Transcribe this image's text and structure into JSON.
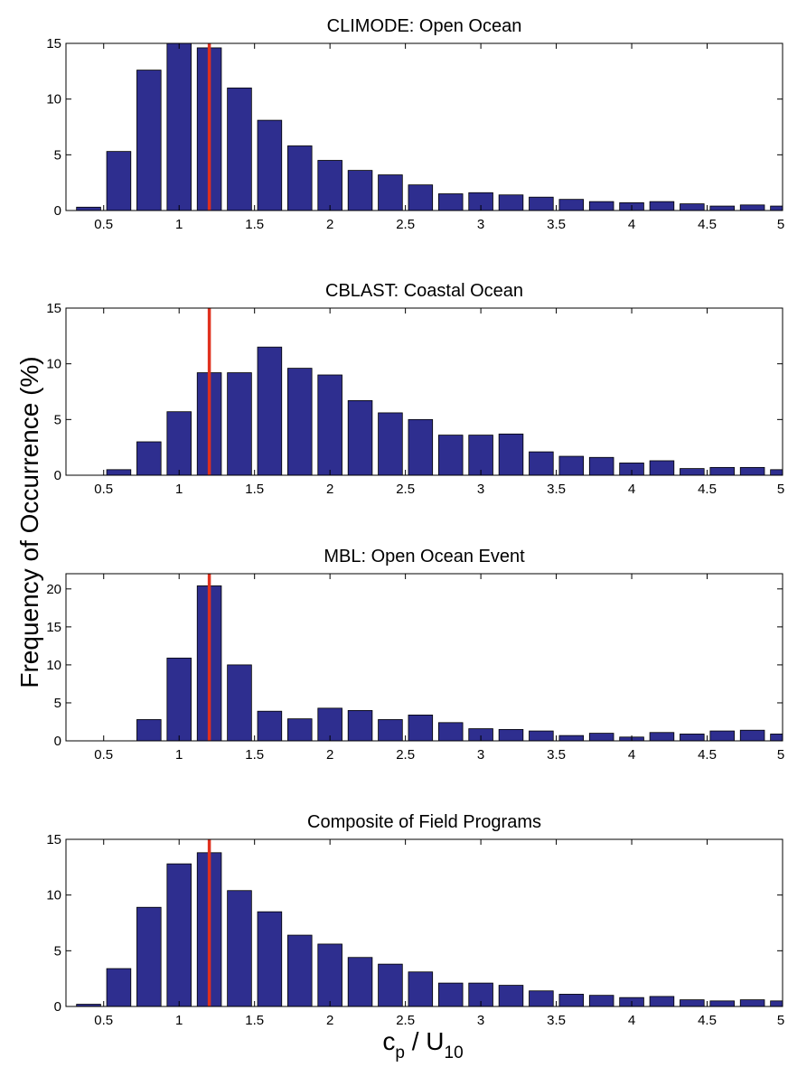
{
  "figure": {
    "ylabel": "Frequency of Occurrence (%)",
    "xlabel_main": "c",
    "xlabel_sub1": "p",
    "xlabel_mid": " / U",
    "xlabel_sub2": "10",
    "bar_color": "#2e2e8f",
    "bar_edge_color": "#000000",
    "ref_line_color": "#e0301e"
  },
  "chart_data": [
    {
      "type": "bar",
      "title": "CLIMODE: Open Ocean",
      "xlim": [
        0.25,
        5.0
      ],
      "ylim": [
        0,
        15
      ],
      "yticks": [
        0,
        5,
        10,
        15
      ],
      "xticks": [
        "0.5",
        "1",
        "1.5",
        "2",
        "2.5",
        "3",
        "3.5",
        "4",
        "4.5",
        "5"
      ],
      "bin_width": 0.2,
      "reference_line_x": 1.2,
      "x": [
        0.4,
        0.6,
        0.8,
        1.0,
        1.2,
        1.4,
        1.6,
        1.8,
        2.0,
        2.2,
        2.4,
        2.6,
        2.8,
        3.0,
        3.2,
        3.4,
        3.6,
        3.8,
        4.0,
        4.2,
        4.4,
        4.6,
        4.8,
        5.0
      ],
      "values": [
        0.3,
        5.3,
        12.6,
        15.0,
        14.6,
        11.0,
        8.1,
        5.8,
        4.5,
        3.6,
        3.2,
        2.3,
        1.5,
        1.6,
        1.4,
        1.2,
        1.0,
        0.8,
        0.7,
        0.8,
        0.6,
        0.4,
        0.5,
        0.4
      ]
    },
    {
      "type": "bar",
      "title": "CBLAST: Coastal Ocean",
      "xlim": [
        0.25,
        5.0
      ],
      "ylim": [
        0,
        15
      ],
      "yticks": [
        0,
        5,
        10,
        15
      ],
      "xticks": [
        "0.5",
        "1",
        "1.5",
        "2",
        "2.5",
        "3",
        "3.5",
        "4",
        "4.5",
        "5"
      ],
      "bin_width": 0.2,
      "reference_line_x": 1.2,
      "x": [
        0.4,
        0.6,
        0.8,
        1.0,
        1.2,
        1.4,
        1.6,
        1.8,
        2.0,
        2.2,
        2.4,
        2.6,
        2.8,
        3.0,
        3.2,
        3.4,
        3.6,
        3.8,
        4.0,
        4.2,
        4.4,
        4.6,
        4.8,
        5.0
      ],
      "values": [
        0.0,
        0.5,
        3.0,
        5.7,
        9.2,
        9.2,
        11.5,
        9.6,
        9.0,
        6.7,
        5.6,
        5.0,
        3.6,
        3.6,
        3.7,
        2.1,
        1.7,
        1.6,
        1.1,
        1.3,
        0.6,
        0.7,
        0.7,
        0.5
      ]
    },
    {
      "type": "bar",
      "title": "MBL: Open Ocean Event",
      "xlim": [
        0.25,
        5.0
      ],
      "ylim": [
        0,
        22
      ],
      "yticks": [
        0,
        5,
        10,
        15,
        20
      ],
      "xticks": [
        "0.5",
        "1",
        "1.5",
        "2",
        "2.5",
        "3",
        "3.5",
        "4",
        "4.5",
        "5"
      ],
      "bin_width": 0.2,
      "reference_line_x": 1.2,
      "x": [
        0.4,
        0.6,
        0.8,
        1.0,
        1.2,
        1.4,
        1.6,
        1.8,
        2.0,
        2.2,
        2.4,
        2.6,
        2.8,
        3.0,
        3.2,
        3.4,
        3.6,
        3.8,
        4.0,
        4.2,
        4.4,
        4.6,
        4.8,
        5.0
      ],
      "values": [
        0.0,
        0.0,
        2.8,
        10.9,
        20.4,
        10.0,
        3.9,
        2.9,
        4.3,
        4.0,
        2.8,
        3.4,
        2.4,
        1.6,
        1.5,
        1.3,
        0.7,
        1.0,
        0.5,
        1.1,
        0.9,
        1.3,
        1.4,
        0.9
      ]
    },
    {
      "type": "bar",
      "title": "Composite of Field Programs",
      "xlim": [
        0.25,
        5.0
      ],
      "ylim": [
        0,
        15
      ],
      "yticks": [
        0,
        5,
        10,
        15
      ],
      "xticks": [
        "0.5",
        "1",
        "1.5",
        "2",
        "2.5",
        "3",
        "3.5",
        "4",
        "4.5",
        "5"
      ],
      "bin_width": 0.2,
      "reference_line_x": 1.2,
      "x": [
        0.4,
        0.6,
        0.8,
        1.0,
        1.2,
        1.4,
        1.6,
        1.8,
        2.0,
        2.2,
        2.4,
        2.6,
        2.8,
        3.0,
        3.2,
        3.4,
        3.6,
        3.8,
        4.0,
        4.2,
        4.4,
        4.6,
        4.8,
        5.0
      ],
      "values": [
        0.2,
        3.4,
        8.9,
        12.8,
        13.8,
        10.4,
        8.5,
        6.4,
        5.6,
        4.4,
        3.8,
        3.1,
        2.1,
        2.1,
        1.9,
        1.4,
        1.1,
        1.0,
        0.8,
        0.9,
        0.6,
        0.5,
        0.6,
        0.5
      ]
    }
  ]
}
